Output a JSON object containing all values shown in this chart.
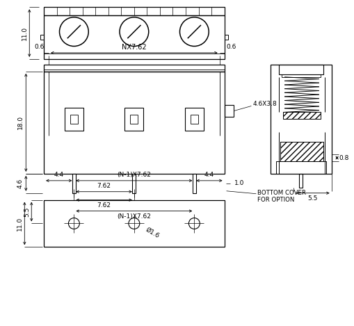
{
  "bg_color": "#ffffff",
  "line_color": "#000000",
  "figsize": [
    5.09,
    4.69
  ],
  "dpi": 100,
  "labels": {
    "dim_11_top": "11.0",
    "dim_nx762": "NX7.62",
    "dim_06_left": "0.6",
    "dim_06_right": "0.6",
    "dim_18": "18.0",
    "dim_46": "4.6",
    "dim_762_pitch": "7.62",
    "dim_n1x762": "(N-1)X7.62",
    "dim_44_left": "4.4",
    "dim_44_right": "4.4",
    "dim_10": "1.0",
    "dim_46x38": "4.6X3.8",
    "dim_bottom_cover": "BOTTOM COVER\nFOR OPTION",
    "dim_55_side": "5.5",
    "dim_08": "0.8",
    "dim_55_bot": "5.5",
    "dim_11_bot": "11.0",
    "dim_762_bot": "7.62",
    "dim_phi16": "Ø1.6"
  }
}
